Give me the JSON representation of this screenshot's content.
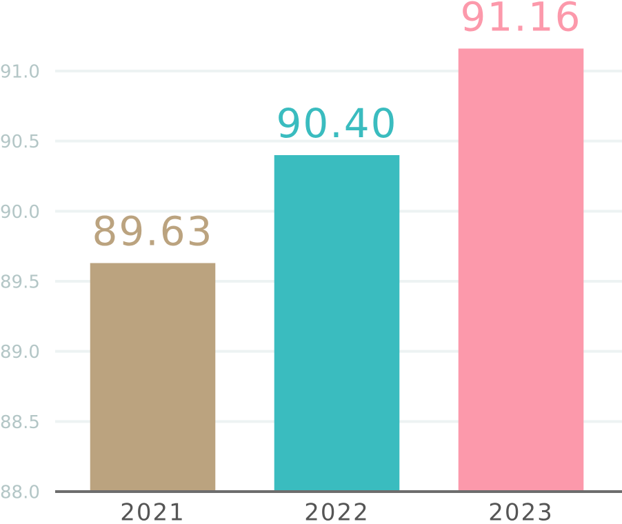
{
  "chart_data": {
    "type": "bar",
    "categories": [
      "2021",
      "2022",
      "2023"
    ],
    "values": [
      89.63,
      90.4,
      91.16
    ],
    "value_labels": [
      "89.63",
      "90.40",
      "91.16"
    ],
    "colors": [
      "#bba37f",
      "#3abcbf",
      "#fc99ab"
    ],
    "ylim": [
      88,
      91.5
    ],
    "yticks": [
      {
        "value": 88,
        "label": "88.0"
      },
      88.5,
      {
        "value": 89,
        "label": "89.0"
      },
      89.5,
      {
        "value": 90,
        "label": "90.0"
      },
      90.5,
      {
        "value": 91,
        "label": "91.0"
      }
    ],
    "grid": true
  }
}
